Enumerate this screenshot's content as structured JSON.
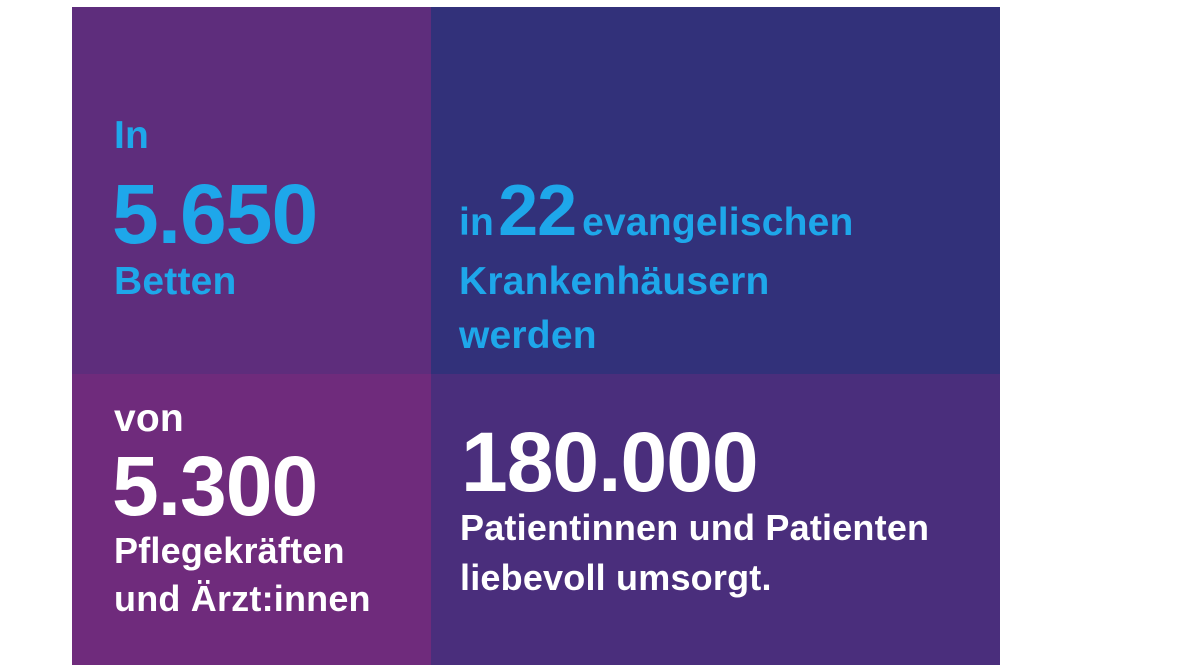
{
  "colors": {
    "top_left_bg": "#5e2d7c",
    "top_right_bg": "#32317a",
    "bottom_left_bg": "#6f2b7c",
    "bottom_right_bg": "#4a2e7c",
    "accent_blue": "#1ea7ea",
    "text_white": "#ffffff"
  },
  "top_left": {
    "intro": "In",
    "number": "5.650",
    "unit": "Betten"
  },
  "top_right": {
    "prefix": "in",
    "number": "22",
    "suffix": "evangelischen",
    "line2": "Krankenhäusern",
    "line3": "werden"
  },
  "bottom_left": {
    "intro": "von",
    "number": "5.300",
    "line1": "Pflegekräften",
    "line2": "und Ärzt:innen"
  },
  "bottom_right": {
    "number": "180.000",
    "line1": "Patientinnen und Patienten",
    "line2": "liebevoll umsorgt."
  }
}
